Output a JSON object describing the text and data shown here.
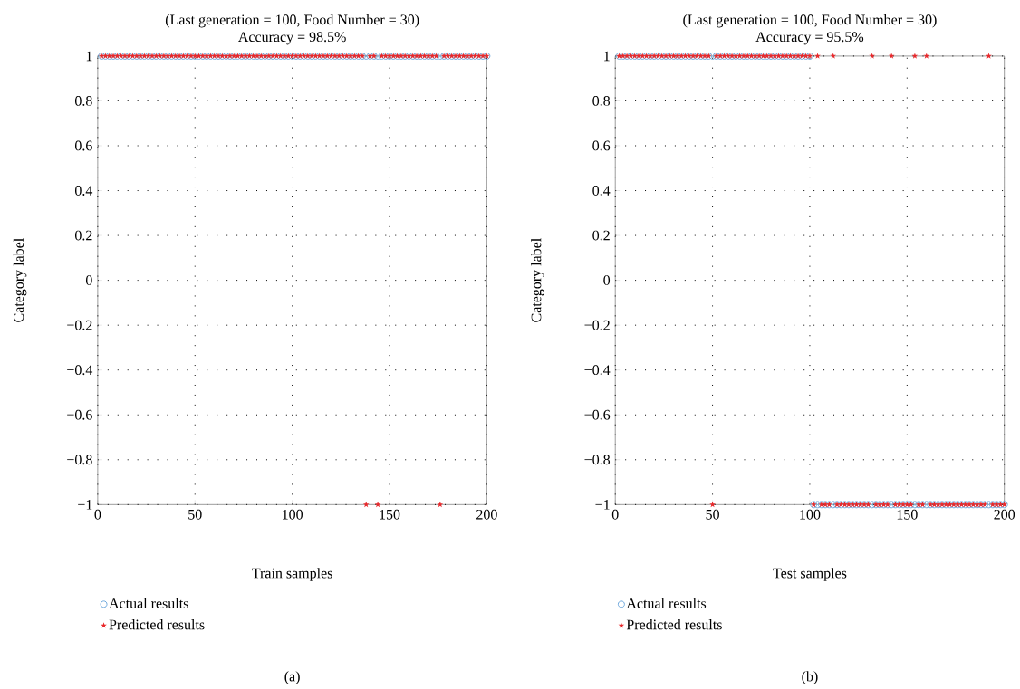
{
  "chart_data": [
    {
      "type": "scatter",
      "title": "(Last generation = 100, Food Number = 30)",
      "subtitle": "Accuracy = 98.5%",
      "xlabel": "Train samples",
      "ylabel": "Category label",
      "annotations": [
        "(a)"
      ],
      "x": [
        2,
        4,
        6,
        8,
        10,
        12,
        14,
        16,
        18,
        20,
        22,
        24,
        26,
        28,
        30,
        32,
        34,
        36,
        38,
        40,
        42,
        44,
        46,
        48,
        50,
        52,
        54,
        56,
        58,
        60,
        62,
        64,
        66,
        68,
        70,
        72,
        74,
        76,
        78,
        80,
        82,
        84,
        86,
        88,
        90,
        92,
        94,
        96,
        98,
        100,
        102,
        104,
        106,
        108,
        110,
        112,
        114,
        116,
        118,
        120,
        122,
        124,
        126,
        128,
        130,
        132,
        134,
        136,
        138,
        140,
        142,
        144,
        146,
        148,
        150,
        152,
        154,
        156,
        158,
        160,
        162,
        164,
        166,
        168,
        170,
        172,
        174,
        176,
        178,
        180,
        182,
        184,
        186,
        188,
        190,
        192,
        194,
        196,
        198,
        200
      ],
      "series": [
        {
          "name": "Actual results",
          "color": "#6fa8dc",
          "marker": "circle",
          "values": [
            1,
            1,
            1,
            1,
            1,
            1,
            1,
            1,
            1,
            1,
            1,
            1,
            1,
            1,
            1,
            1,
            1,
            1,
            1,
            1,
            1,
            1,
            1,
            1,
            1,
            1,
            1,
            1,
            1,
            1,
            1,
            1,
            1,
            1,
            1,
            1,
            1,
            1,
            1,
            1,
            1,
            1,
            1,
            1,
            1,
            1,
            1,
            1,
            1,
            1,
            1,
            1,
            1,
            1,
            1,
            1,
            1,
            1,
            1,
            1,
            1,
            1,
            1,
            1,
            1,
            1,
            1,
            1,
            1,
            1,
            1,
            1,
            1,
            1,
            1,
            1,
            1,
            1,
            1,
            1,
            1,
            1,
            1,
            1,
            1,
            1,
            1,
            1,
            1,
            1,
            1,
            1,
            1,
            1,
            1,
            1,
            1,
            1,
            1,
            1
          ]
        },
        {
          "name": "Predicted results",
          "color": "#e8282b",
          "marker": "star",
          "values": [
            1,
            1,
            1,
            1,
            1,
            1,
            1,
            1,
            1,
            1,
            1,
            1,
            1,
            1,
            1,
            1,
            1,
            1,
            1,
            1,
            1,
            1,
            1,
            1,
            1,
            1,
            1,
            1,
            1,
            1,
            1,
            1,
            1,
            1,
            1,
            1,
            1,
            1,
            1,
            1,
            1,
            1,
            1,
            1,
            1,
            1,
            1,
            1,
            1,
            1,
            1,
            1,
            1,
            1,
            1,
            1,
            1,
            1,
            1,
            1,
            1,
            1,
            1,
            1,
            1,
            1,
            1,
            1,
            -1,
            1,
            1,
            -1,
            1,
            1,
            1,
            1,
            1,
            1,
            1,
            1,
            1,
            1,
            1,
            1,
            1,
            1,
            1,
            -1,
            1,
            1,
            1,
            1,
            1,
            1,
            1,
            1,
            1,
            1,
            1,
            1
          ]
        }
      ],
      "xlim": [
        0,
        200
      ],
      "xticks": [
        0,
        50,
        100,
        150,
        200
      ],
      "ylim": [
        -1,
        1
      ],
      "yticks": [
        {
          "value": -1,
          "label": "−1"
        },
        {
          "value": -0.8,
          "label": "−0.8"
        },
        {
          "value": -0.6,
          "label": "−0.6"
        },
        {
          "value": -0.4,
          "label": "−0.4"
        },
        {
          "value": -0.2,
          "label": "−0.2"
        },
        0,
        0.2,
        0.4,
        0.6,
        0.8,
        1
      ],
      "grid": true,
      "legend": "bottom left"
    },
    {
      "type": "scatter",
      "title": "(Last generation = 100, Food Number = 30)",
      "subtitle": "Accuracy = 95.5%",
      "xlabel": "Test samples",
      "ylabel": "Category label",
      "annotations": [
        "(b)"
      ],
      "x": [
        2,
        4,
        6,
        8,
        10,
        12,
        14,
        16,
        18,
        20,
        22,
        24,
        26,
        28,
        30,
        32,
        34,
        36,
        38,
        40,
        42,
        44,
        46,
        48,
        50,
        52,
        54,
        56,
        58,
        60,
        62,
        64,
        66,
        68,
        70,
        72,
        74,
        76,
        78,
        80,
        82,
        84,
        86,
        88,
        90,
        92,
        94,
        96,
        98,
        100,
        102,
        104,
        106,
        108,
        110,
        112,
        114,
        116,
        118,
        120,
        122,
        124,
        126,
        128,
        130,
        132,
        134,
        136,
        138,
        140,
        142,
        144,
        146,
        148,
        150,
        152,
        154,
        156,
        158,
        160,
        162,
        164,
        166,
        168,
        170,
        172,
        174,
        176,
        178,
        180,
        182,
        184,
        186,
        188,
        190,
        192,
        194,
        196,
        198,
        200
      ],
      "series": [
        {
          "name": "Actual results",
          "color": "#6fa8dc",
          "marker": "circle",
          "values": [
            1,
            1,
            1,
            1,
            1,
            1,
            1,
            1,
            1,
            1,
            1,
            1,
            1,
            1,
            1,
            1,
            1,
            1,
            1,
            1,
            1,
            1,
            1,
            1,
            1,
            1,
            1,
            1,
            1,
            1,
            1,
            1,
            1,
            1,
            1,
            1,
            1,
            1,
            1,
            1,
            1,
            1,
            1,
            1,
            1,
            1,
            1,
            1,
            1,
            1,
            -1,
            -1,
            -1,
            -1,
            -1,
            -1,
            -1,
            -1,
            -1,
            -1,
            -1,
            -1,
            -1,
            -1,
            -1,
            -1,
            -1,
            -1,
            -1,
            -1,
            -1,
            -1,
            -1,
            -1,
            -1,
            -1,
            -1,
            -1,
            -1,
            -1,
            -1,
            -1,
            -1,
            -1,
            -1,
            -1,
            -1,
            -1,
            -1,
            -1,
            -1,
            -1,
            -1,
            -1,
            -1,
            -1,
            -1,
            -1,
            -1,
            -1
          ]
        },
        {
          "name": "Predicted results",
          "color": "#e8282b",
          "marker": "star",
          "values": [
            1,
            1,
            1,
            1,
            1,
            1,
            1,
            1,
            1,
            1,
            1,
            1,
            1,
            1,
            1,
            1,
            1,
            1,
            1,
            1,
            1,
            1,
            1,
            1,
            -1,
            1,
            1,
            1,
            1,
            1,
            1,
            1,
            1,
            1,
            1,
            1,
            1,
            1,
            1,
            1,
            1,
            1,
            1,
            1,
            1,
            1,
            1,
            1,
            1,
            1,
            -1,
            1,
            -1,
            -1,
            -1,
            1,
            -1,
            -1,
            -1,
            -1,
            -1,
            -1,
            -1,
            -1,
            -1,
            1,
            -1,
            -1,
            -1,
            -1,
            1,
            -1,
            -1,
            -1,
            -1,
            -1,
            1,
            -1,
            -1,
            1,
            -1,
            -1,
            -1,
            -1,
            -1,
            -1,
            -1,
            -1,
            -1,
            -1,
            -1,
            -1,
            -1,
            -1,
            -1,
            1,
            -1,
            -1,
            -1,
            -1
          ]
        }
      ],
      "xlim": [
        0,
        200
      ],
      "xticks": [
        0,
        50,
        100,
        150,
        200
      ],
      "ylim": [
        -1,
        1
      ],
      "yticks": [
        {
          "value": -1,
          "label": "−1"
        },
        {
          "value": -0.8,
          "label": "−0.8"
        },
        {
          "value": -0.6,
          "label": "−0.6"
        },
        {
          "value": -0.4,
          "label": "−0.4"
        },
        {
          "value": -0.2,
          "label": "−0.2"
        },
        0,
        0.2,
        0.4,
        0.6,
        0.8,
        1
      ],
      "grid": true,
      "legend": "bottom left"
    }
  ]
}
